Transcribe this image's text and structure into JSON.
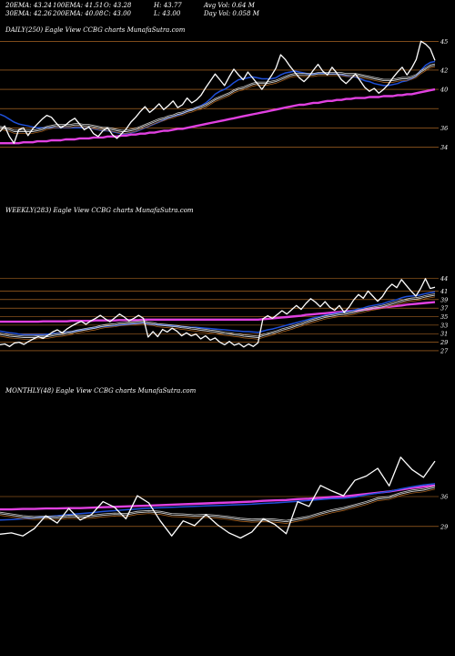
{
  "header": {
    "row1": [
      {
        "label": "20EMA:",
        "value": "43.24"
      },
      {
        "label": "100EMA:",
        "value": "41.51"
      },
      {
        "label": "O:",
        "value": "43.28"
      },
      {
        "label": "H:",
        "value": "43.77"
      },
      {
        "label": "Avg Vol:",
        "value": "0.64  M"
      }
    ],
    "row2": [
      {
        "label": "30EMA:",
        "value": "42.26"
      },
      {
        "label": "200EMA:",
        "value": "40.08"
      },
      {
        "label": "C:",
        "value": "43.00"
      },
      {
        "label": "L:",
        "value": "43.00"
      },
      {
        "label": "Day Vol:",
        "value": "0.058 M"
      }
    ]
  },
  "colors": {
    "background": "#000000",
    "price": "#ffffff",
    "ema_short": "#cccccc",
    "ema_mid": "#1e4fd8",
    "ema_long": "#e040e0",
    "ema_brown": "#b86a20",
    "gridline": "#c8782a"
  },
  "chart_data": [
    {
      "type": "line",
      "title": "DAILY(250) Eagle  View  CCBG charts MunafaSutra.com",
      "ylim": [
        33,
        45.5
      ],
      "gridlines": [
        45,
        42,
        40,
        38,
        36,
        34
      ],
      "tick_labels": [
        "45",
        "42",
        "40",
        "36",
        "34"
      ],
      "series": [
        {
          "key": "price",
          "values": [
            35.6,
            36.2,
            35.1,
            34.4,
            35.8,
            36.0,
            35.2,
            35.9,
            36.4,
            36.9,
            37.3,
            37.1,
            36.5,
            36.0,
            36.3,
            36.7,
            37.0,
            36.4,
            35.8,
            36.1,
            35.4,
            35.1,
            35.7,
            36.0,
            35.3,
            34.9,
            35.4,
            35.9,
            36.6,
            37.1,
            37.7,
            38.2,
            37.6,
            38.0,
            38.5,
            37.9,
            38.3,
            38.8,
            38.1,
            38.4,
            39.1,
            38.6,
            38.9,
            39.4,
            40.2,
            40.9,
            41.6,
            41.0,
            40.4,
            41.3,
            42.1,
            41.5,
            41.0,
            41.8,
            41.2,
            40.6,
            40.0,
            40.7,
            41.4,
            42.2,
            43.6,
            43.1,
            42.4,
            41.8,
            41.2,
            40.8,
            41.3,
            42.0,
            42.6,
            41.9,
            41.5,
            42.3,
            41.7,
            41.0,
            40.6,
            41.1,
            41.6,
            40.9,
            40.2,
            39.8,
            40.1,
            39.6,
            40.0,
            40.5,
            41.2,
            41.8,
            42.3,
            41.5,
            42.2,
            43.1,
            45.0,
            44.7,
            44.2,
            43.0
          ]
        },
        {
          "key": "ema_short",
          "values": [
            36.0,
            35.9,
            35.8,
            35.6,
            35.6,
            35.6,
            35.6,
            35.6,
            35.7,
            35.8,
            36.0,
            36.1,
            36.2,
            36.2,
            36.2,
            36.2,
            36.3,
            36.3,
            36.2,
            36.2,
            36.1,
            36.0,
            35.9,
            35.9,
            35.8,
            35.7,
            35.6,
            35.6,
            35.7,
            35.8,
            36.0,
            36.2,
            36.4,
            36.6,
            36.8,
            36.9,
            37.1,
            37.2,
            37.4,
            37.5,
            37.7,
            37.8,
            38.0,
            38.1,
            38.3,
            38.6,
            38.9,
            39.1,
            39.3,
            39.5,
            39.8,
            40.0,
            40.1,
            40.3,
            40.5,
            40.6,
            40.6,
            40.6,
            40.7,
            40.8,
            41.0,
            41.2,
            41.4,
            41.5,
            41.5,
            41.5,
            41.5,
            41.5,
            41.6,
            41.6,
            41.6,
            41.6,
            41.6,
            41.6,
            41.5,
            41.5,
            41.5,
            41.4,
            41.3,
            41.2,
            41.1,
            41.0,
            40.9,
            40.9,
            40.9,
            41.0,
            41.1,
            41.1,
            41.2,
            41.4,
            41.8,
            42.1,
            42.4,
            42.5
          ]
        },
        {
          "key": "ema_mid",
          "values": [
            37.4,
            37.2,
            36.9,
            36.6,
            36.4,
            36.3,
            36.2,
            36.1,
            36.0,
            36.0,
            36.0,
            36.0,
            36.0,
            36.0,
            36.0,
            36.0,
            36.0,
            36.0,
            36.0,
            36.0,
            35.9,
            35.8,
            35.7,
            35.7,
            35.6,
            35.5,
            35.4,
            35.4,
            35.5,
            35.6,
            35.8,
            36.0,
            36.2,
            36.4,
            36.6,
            36.8,
            37.0,
            37.2,
            37.3,
            37.5,
            37.7,
            37.9,
            38.1,
            38.3,
            38.6,
            39.0,
            39.5,
            39.8,
            40.0,
            40.3,
            40.7,
            41.0,
            41.1,
            41.2,
            41.3,
            41.2,
            41.1,
            41.1,
            41.1,
            41.2,
            41.5,
            41.7,
            41.8,
            41.9,
            41.8,
            41.7,
            41.6,
            41.6,
            41.7,
            41.7,
            41.6,
            41.6,
            41.6,
            41.5,
            41.4,
            41.3,
            41.3,
            41.1,
            40.9,
            40.8,
            40.6,
            40.5,
            40.4,
            40.4,
            40.5,
            40.6,
            40.8,
            40.9,
            41.1,
            41.4,
            42.0,
            42.5,
            42.8,
            42.9
          ]
        },
        {
          "key": "ema_long",
          "values": [
            34.4,
            34.4,
            34.4,
            34.4,
            34.4,
            34.5,
            34.5,
            34.5,
            34.6,
            34.6,
            34.6,
            34.7,
            34.7,
            34.7,
            34.8,
            34.8,
            34.8,
            34.9,
            34.9,
            34.9,
            35.0,
            35.0,
            35.0,
            35.1,
            35.1,
            35.1,
            35.2,
            35.2,
            35.3,
            35.3,
            35.4,
            35.4,
            35.5,
            35.5,
            35.6,
            35.7,
            35.7,
            35.8,
            35.9,
            35.9,
            36.0,
            36.1,
            36.2,
            36.3,
            36.4,
            36.5,
            36.6,
            36.7,
            36.8,
            36.9,
            37.0,
            37.1,
            37.2,
            37.3,
            37.4,
            37.5,
            37.6,
            37.7,
            37.8,
            37.9,
            38.0,
            38.1,
            38.2,
            38.3,
            38.4,
            38.4,
            38.5,
            38.6,
            38.6,
            38.7,
            38.8,
            38.8,
            38.9,
            38.9,
            39.0,
            39.0,
            39.1,
            39.1,
            39.1,
            39.2,
            39.2,
            39.2,
            39.3,
            39.3,
            39.3,
            39.4,
            39.4,
            39.5,
            39.5,
            39.6,
            39.7,
            39.8,
            39.9,
            40.0
          ]
        }
      ]
    },
    {
      "type": "line",
      "title": "WEEKLY(283) Eagle  View  CCBG charts MunafaSutra.com",
      "ylim": [
        25.5,
        46
      ],
      "gridlines": [
        44,
        41,
        39,
        37,
        35,
        33,
        31,
        29,
        27
      ],
      "tick_labels": [
        "44",
        "41",
        "39",
        "37",
        "35",
        "33",
        "31",
        "29",
        "27"
      ],
      "series": [
        {
          "key": "price",
          "values": [
            28.4,
            28.6,
            28.0,
            28.8,
            29.0,
            28.5,
            29.2,
            29.8,
            30.3,
            29.9,
            30.6,
            31.4,
            31.9,
            31.2,
            32.1,
            32.8,
            33.4,
            33.9,
            33.2,
            34.0,
            34.6,
            35.3,
            34.5,
            33.8,
            34.7,
            35.6,
            34.9,
            34.0,
            34.6,
            35.3,
            34.6,
            30.2,
            31.5,
            30.3,
            32.0,
            31.4,
            32.3,
            31.6,
            30.5,
            31.2,
            30.5,
            30.9,
            29.8,
            30.5,
            29.5,
            30.0,
            29.0,
            28.4,
            29.2,
            28.3,
            28.7,
            27.9,
            28.6,
            28.0,
            28.9,
            34.5,
            35.2,
            34.6,
            35.5,
            36.4,
            35.6,
            36.6,
            37.6,
            36.7,
            38.1,
            39.2,
            38.4,
            37.3,
            38.5,
            37.2,
            36.5,
            37.6,
            36.0,
            37.2,
            38.9,
            40.2,
            39.3,
            41.0,
            39.8,
            38.6,
            39.7,
            41.5,
            42.6,
            41.8,
            43.7,
            42.3,
            41.0,
            39.8,
            41.6,
            43.9,
            41.6,
            41.9
          ]
        },
        {
          "key": "ema_short",
          "values": [
            30.8,
            30.6,
            30.4,
            30.3,
            30.2,
            30.1,
            30.1,
            30.1,
            30.2,
            30.2,
            30.3,
            30.5,
            30.7,
            30.8,
            31.0,
            31.2,
            31.5,
            31.7,
            31.9,
            32.1,
            32.3,
            32.6,
            32.8,
            32.9,
            33.0,
            33.2,
            33.3,
            33.4,
            33.5,
            33.6,
            33.7,
            33.4,
            33.3,
            33.0,
            32.9,
            32.8,
            32.7,
            32.6,
            32.4,
            32.3,
            32.1,
            32.0,
            31.8,
            31.7,
            31.5,
            31.4,
            31.2,
            31.0,
            30.9,
            30.7,
            30.6,
            30.4,
            30.3,
            30.2,
            30.1,
            30.5,
            30.8,
            31.1,
            31.4,
            31.8,
            32.1,
            32.4,
            32.8,
            33.1,
            33.5,
            33.9,
            34.2,
            34.5,
            34.8,
            35.0,
            35.2,
            35.4,
            35.5,
            35.7,
            35.9,
            36.2,
            36.4,
            36.7,
            36.9,
            37.1,
            37.3,
            37.6,
            37.9,
            38.2,
            38.5,
            38.8,
            39.0,
            39.1,
            39.3,
            39.6,
            39.8,
            40.0
          ]
        },
        {
          "key": "ema_mid",
          "values": [
            31.6,
            31.4,
            31.2,
            31.1,
            30.9,
            30.8,
            30.8,
            30.8,
            30.8,
            30.8,
            30.9,
            31.0,
            31.1,
            31.2,
            31.4,
            31.5,
            31.7,
            31.9,
            32.0,
            32.2,
            32.4,
            32.6,
            32.7,
            32.8,
            32.9,
            33.0,
            33.1,
            33.2,
            33.3,
            33.4,
            33.5,
            33.3,
            33.2,
            33.1,
            33.0,
            32.9,
            32.9,
            32.8,
            32.7,
            32.6,
            32.5,
            32.5,
            32.4,
            32.3,
            32.2,
            32.1,
            32.0,
            31.9,
            31.8,
            31.7,
            31.6,
            31.5,
            31.5,
            31.4,
            31.3,
            31.6,
            31.9,
            32.1,
            32.4,
            32.7,
            33.0,
            33.3,
            33.6,
            33.9,
            34.2,
            34.5,
            34.8,
            35.0,
            35.3,
            35.5,
            35.7,
            35.9,
            36.0,
            36.2,
            36.5,
            36.8,
            37.0,
            37.4,
            37.6,
            37.8,
            38.0,
            38.4,
            38.7,
            39.0,
            39.4,
            39.7,
            39.8,
            39.9,
            40.1,
            40.4,
            40.6,
            40.8
          ]
        },
        {
          "key": "ema_long",
          "values": [
            33.8,
            33.8,
            33.8,
            33.8,
            33.8,
            33.8,
            33.8,
            33.8,
            33.8,
            33.9,
            33.9,
            33.9,
            33.9,
            33.9,
            33.9,
            34.0,
            34.0,
            34.0,
            34.0,
            34.0,
            34.1,
            34.1,
            34.1,
            34.1,
            34.1,
            34.2,
            34.2,
            34.2,
            34.2,
            34.2,
            34.3,
            34.3,
            34.3,
            34.3,
            34.3,
            34.3,
            34.3,
            34.3,
            34.3,
            34.3,
            34.3,
            34.3,
            34.3,
            34.3,
            34.3,
            34.3,
            34.3,
            34.3,
            34.3,
            34.3,
            34.3,
            34.3,
            34.3,
            34.3,
            34.3,
            34.4,
            34.5,
            34.6,
            34.7,
            34.8,
            34.9,
            35.0,
            35.1,
            35.2,
            35.4,
            35.5,
            35.6,
            35.7,
            35.8,
            35.9,
            36.0,
            36.1,
            36.2,
            36.3,
            36.4,
            36.5,
            36.6,
            36.7,
            36.9,
            37.0,
            37.1,
            37.2,
            37.4,
            37.5,
            37.6,
            37.8,
            37.9,
            38.0,
            38.1,
            38.2,
            38.3,
            38.4
          ]
        }
      ]
    },
    {
      "type": "line",
      "title": "MONTHLY(48) Eagle  View  CCBG charts MunafaSutra.com",
      "ylim": [
        23,
        49
      ],
      "gridlines": [
        36,
        29
      ],
      "tick_labels": [
        "36",
        "29"
      ],
      "series": [
        {
          "key": "price",
          "values": [
            27.2,
            27.5,
            26.8,
            28.5,
            31.5,
            29.8,
            33.2,
            30.5,
            31.8,
            34.8,
            33.5,
            30.8,
            36.2,
            34.5,
            30.3,
            26.8,
            30.3,
            29.2,
            31.8,
            29.4,
            27.5,
            26.3,
            27.7,
            30.8,
            29.5,
            27.3,
            34.8,
            33.7,
            38.6,
            37.3,
            36.2,
            39.8,
            40.8,
            42.6,
            38.5,
            45.2,
            42.3,
            40.5,
            44.3
          ]
        },
        {
          "key": "ema_short",
          "values": [
            32.0,
            31.6,
            31.2,
            31.0,
            31.1,
            31.0,
            31.3,
            31.2,
            31.3,
            31.6,
            31.8,
            31.7,
            32.2,
            32.4,
            32.2,
            31.7,
            31.6,
            31.4,
            31.5,
            31.3,
            31.0,
            30.6,
            30.4,
            30.5,
            30.4,
            30.1,
            30.6,
            31.1,
            31.9,
            32.6,
            33.1,
            33.8,
            34.5,
            35.4,
            35.7,
            36.6,
            37.2,
            37.5,
            38.1
          ]
        },
        {
          "key": "ema_mid",
          "values": [
            30.5,
            30.6,
            30.8,
            31.0,
            31.3,
            31.5,
            31.8,
            32.0,
            32.2,
            32.5,
            32.7,
            32.9,
            33.1,
            33.3,
            33.4,
            33.5,
            33.6,
            33.7,
            33.8,
            33.9,
            34.0,
            34.1,
            34.2,
            34.4,
            34.5,
            34.7,
            34.9,
            35.1,
            35.3,
            35.5,
            35.6,
            35.9,
            36.4,
            36.8,
            37.2,
            37.8,
            38.3,
            38.7,
            39.0
          ]
        },
        {
          "key": "ema_long",
          "values": [
            33.0,
            33.0,
            33.1,
            33.1,
            33.2,
            33.2,
            33.3,
            33.3,
            33.4,
            33.5,
            33.6,
            33.7,
            33.8,
            33.9,
            34.0,
            34.1,
            34.2,
            34.3,
            34.4,
            34.5,
            34.6,
            34.7,
            34.8,
            35.0,
            35.1,
            35.2,
            35.4,
            35.5,
            35.7,
            35.9,
            36.0,
            36.3,
            36.6,
            36.9,
            37.2,
            37.6,
            38.0,
            38.3,
            38.6
          ]
        }
      ]
    }
  ]
}
